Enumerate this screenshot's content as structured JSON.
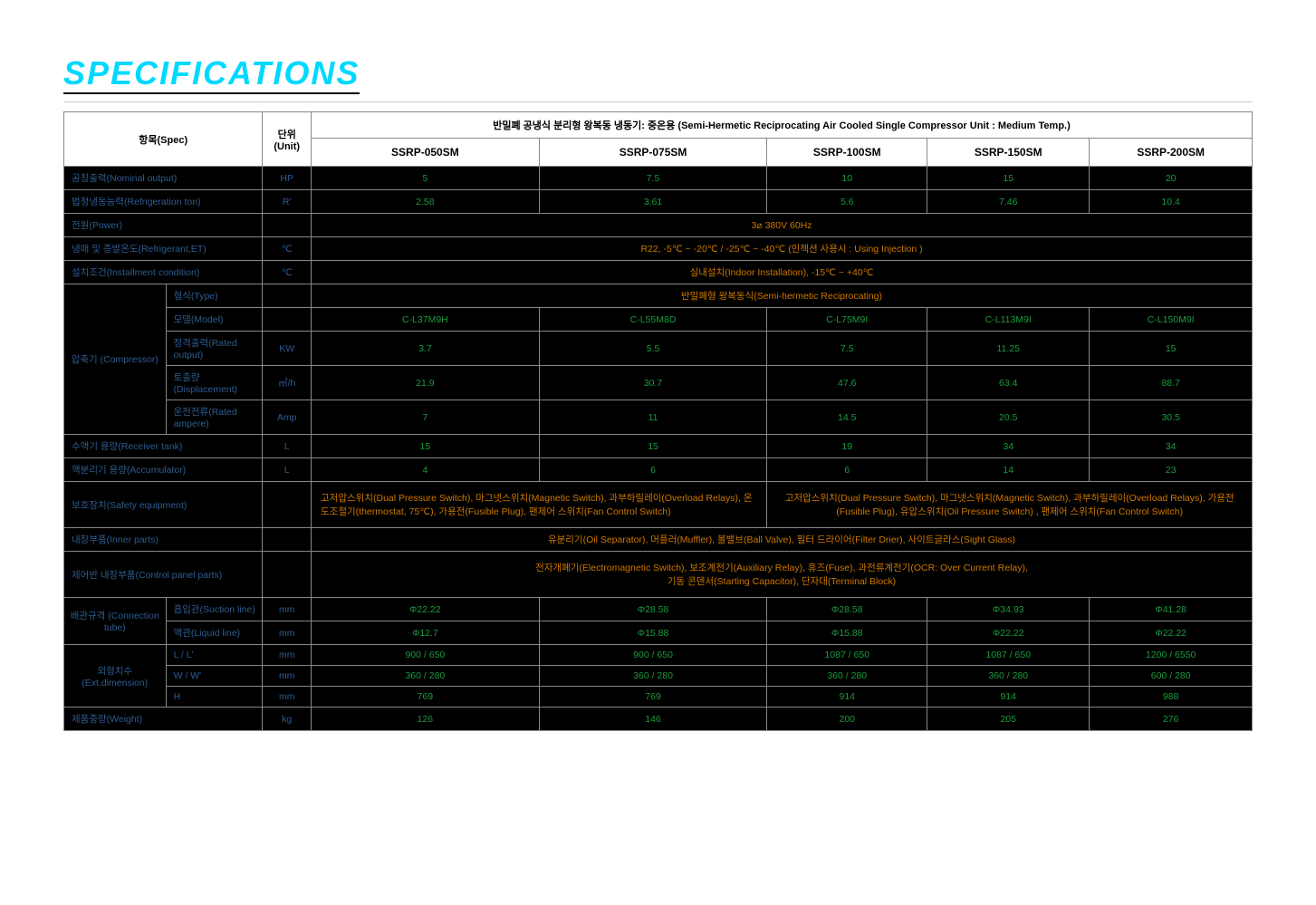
{
  "page": {
    "title": "SPECIFICATIONS"
  },
  "header": {
    "spec_label": "항목(Spec)",
    "unit_label": "단위\n(Unit)",
    "product_title": "반밀폐 공냉식 분리형 왕복동 냉동기: 중온용 (Semi-Hermetic Reciprocating Air Cooled Single Compressor Unit : Medium Temp.)",
    "models": [
      "SSRP-050SM",
      "SSRP-075SM",
      "SSRP-100SM",
      "SSRP-150SM",
      "SSRP-200SM"
    ]
  },
  "rows": {
    "nominal_output": {
      "label": "공칭출력(Nominal output)",
      "unit": "HP",
      "values": [
        "5",
        "7.5",
        "10",
        "15",
        "20"
      ]
    },
    "refrigeration_ton": {
      "label": "법정냉동능력(Refrigeration ton)",
      "unit": "R'",
      "values": [
        "2.58",
        "3.61",
        "5.6",
        "7.46",
        "10.4"
      ]
    },
    "power": {
      "label": "전원(Power)",
      "unit": "",
      "value": "3⌀ 380V 60Hz"
    },
    "refrigerant": {
      "label": "냉매 및 증발온도(Refrigerant,ET)",
      "unit": "℃",
      "value": "R22, -5℃ ~ -20℃ / -25℃ ~ -40℃ (인젝션 사용시 : Using Injection )"
    },
    "installment": {
      "label": "설치조건(Installment condition)",
      "unit": "℃",
      "value": "실내설치(Indoor Installation), -15℃ ~ +40℃"
    },
    "compressor": {
      "group_label": "압축기\n(Compressor)",
      "type": {
        "label": "형식(Type)",
        "unit": "",
        "value": "반밀폐형 왕복동식(Semi-hermetic Reciprocating)"
      },
      "model": {
        "label": "모델(Model)",
        "unit": "",
        "values": [
          "C-L37M9H",
          "C-L55M8D",
          "C-L75M9I",
          "C-L113M9I",
          "C-L150M9I"
        ]
      },
      "rated_output": {
        "label": "정격출력(Rated output)",
        "unit": "KW",
        "values": [
          "3.7",
          "5.5",
          "7.5",
          "11.25",
          "15"
        ]
      },
      "displacement": {
        "label": "토출량(Displacement)",
        "unit": "㎥/h",
        "values": [
          "21.9",
          "30.7",
          "47.6",
          "63.4",
          "88.7"
        ]
      },
      "rated_ampere": {
        "label": "운전전류(Rated ampere)",
        "unit": "Amp",
        "values": [
          "7",
          "11",
          "14.5",
          "20.5",
          "30.5"
        ]
      }
    },
    "receiver_tank": {
      "label": "수액기 용량(Receiver tank)",
      "unit": "L",
      "values": [
        "15",
        "15",
        "19",
        "34",
        "34"
      ]
    },
    "accumulator": {
      "label": "액분리기 용량(Accumulator)",
      "unit": "L",
      "values": [
        "4",
        "6",
        "6",
        "14",
        "23"
      ]
    },
    "safety": {
      "label": "보호장치(Safety equipment)",
      "unit": "",
      "value_left": "고저압스위치(Dual Pressure Switch), 마그넷스위치(Magnetic Switch), 과부하릴레이(Overload Relays), 온도조절기(thermostat, 75℃), 가용전(Fusible Plug), 팬제어 스위치(Fan Control Switch)",
      "value_right": "고저압스위치(Dual Pressure Switch), 마그넷스위치(Magnetic Switch), 과부하릴레이(Overload Relays), 가용전(Fusible Plug),  유압스위치(Oil Pressure Switch) , 팬제어 스위치(Fan Control Switch)"
    },
    "inner_parts": {
      "label": "내장부품(Inner parts)",
      "unit": "",
      "value": "유분리기(Oil Separator), 머플러(Muffler), 볼밸브(Ball Valve), 필터 드라이어(Filter Drier), 사이트글라스(Sight Glass)"
    },
    "control_panel": {
      "label": "제어반 내장부품(Control panel parts)",
      "unit": "",
      "value": "전자개폐기(Electromagnetic Switch), 보조계전기(Auxiliary Relay), 휴즈(Fuse), 과전류계전기(OCR: Over Current Relay),\n기동 콘덴서(Starting Capacitor), 단자대(Terminal Block)"
    },
    "connection": {
      "group_label": "배관규격\n(Connection tube)",
      "suction": {
        "label": "흡입관(Suction line)",
        "unit": "mm",
        "values": [
          "Φ22.22",
          "Φ28.58",
          "Φ28.58",
          "Φ34.93",
          "Φ41.28"
        ]
      },
      "liquid": {
        "label": "액관(Liquid line)",
        "unit": "mm",
        "values": [
          "Φ12.7",
          "Φ15.88",
          "Φ15.88",
          "Φ22.22",
          "Φ22.22"
        ]
      }
    },
    "dimension": {
      "group_label": "외형치수\n(Ext.dimension)",
      "l": {
        "label": "L / L'",
        "unit": "mm",
        "values": [
          "900 / 650",
          "900 / 650",
          "1087 / 650",
          "1087 / 650",
          "1200 / 6550"
        ]
      },
      "w": {
        "label": "W / W'",
        "unit": "mm",
        "values": [
          "360 / 280",
          "360 / 280",
          "360 / 280",
          "360 / 280",
          "600 / 280"
        ]
      },
      "h": {
        "label": "H",
        "unit": "mm",
        "values": [
          "769",
          "769",
          "914",
          "914",
          "988"
        ]
      }
    },
    "weight": {
      "label": "제품중량(Weight)",
      "unit": "kg",
      "values": [
        "126",
        "146",
        "200",
        "205",
        "276"
      ]
    }
  },
  "colors": {
    "title_color": "#00d9ff",
    "row_bg": "#000000",
    "label_color": "#2d5c8f",
    "data_color": "#1a9b3e",
    "data_orange": "#cc7700",
    "border": "#888888"
  }
}
